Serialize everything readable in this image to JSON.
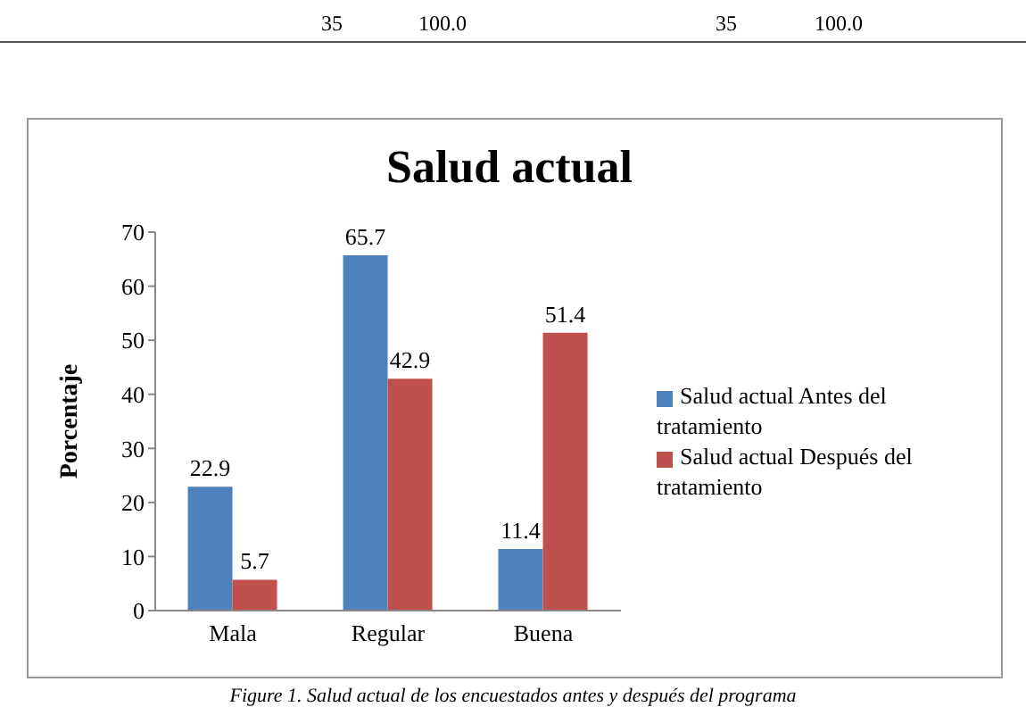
{
  "chart_data": {
    "type": "bar",
    "title": "Salud actual",
    "ylabel": "Porcentaje",
    "categories": [
      "Mala",
      "Regular",
      "Buena"
    ],
    "series": [
      {
        "name": "Salud actual Antes del tratamiento",
        "color": "#4f81bd",
        "values": [
          22.9,
          65.7,
          11.4
        ]
      },
      {
        "name": "Salud actual Después del tratamiento",
        "color": "#c0504d",
        "values": [
          5.7,
          42.9,
          51.4
        ]
      }
    ],
    "ylim": [
      0,
      70
    ],
    "yticks": [
      0,
      10,
      20,
      30,
      40,
      50,
      60,
      70
    ],
    "grid": false,
    "legend": "right",
    "data_labels": true,
    "annotations": [
      "35",
      "100.0",
      "35",
      "100.0",
      "Figure 1. Salud actual de los encuestados antes y después del programa"
    ]
  }
}
